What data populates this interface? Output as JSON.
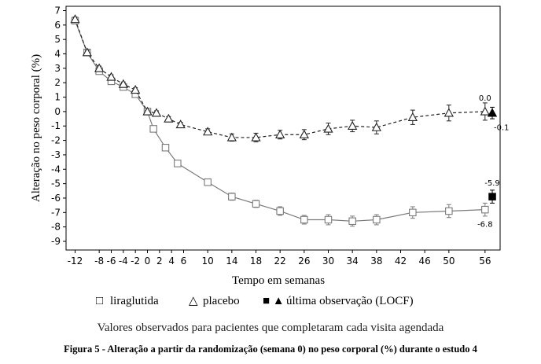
{
  "chart_data": {
    "type": "line",
    "xlabel": "Tempo em semanas",
    "ylabel": "Alteração no peso corporal (%)",
    "xlim": [
      -13.5,
      58.5
    ],
    "ylim": [
      -9.6,
      7.3
    ],
    "x_ticks": [
      -12,
      -8,
      -6,
      -4,
      -2,
      0,
      2,
      4,
      6,
      10,
      14,
      18,
      22,
      26,
      30,
      34,
      38,
      42,
      46,
      50,
      56
    ],
    "y_ticks": [
      7,
      6,
      5,
      4,
      3,
      2,
      1,
      0,
      -1,
      -2,
      -3,
      -4,
      -5,
      -6,
      -7,
      -8,
      -9
    ],
    "series": [
      {
        "name": "liraglutida",
        "marker": "square",
        "line_style": "solid",
        "color": "#7a7a7a",
        "x": [
          -12,
          -10,
          -8,
          -6,
          -4,
          -2,
          0,
          1,
          3,
          5,
          10,
          14,
          18,
          22,
          26,
          30,
          34,
          38,
          44,
          50,
          56
        ],
        "values": [
          6.3,
          4.1,
          2.8,
          2.1,
          1.7,
          1.2,
          0.0,
          -1.2,
          -2.5,
          -3.6,
          -4.9,
          -5.9,
          -6.4,
          -6.9,
          -7.5,
          -7.5,
          -7.6,
          -7.5,
          -7.0,
          -6.9,
          -6.8
        ],
        "err": [
          0.15,
          0.15,
          0.15,
          0.15,
          0.15,
          0.15,
          0.1,
          0.15,
          0.2,
          0.2,
          0.2,
          0.25,
          0.25,
          0.3,
          0.3,
          0.35,
          0.35,
          0.35,
          0.4,
          0.45,
          0.45
        ]
      },
      {
        "name": "placebo",
        "marker": "triangle",
        "line_style": "dashed",
        "color": "#222222",
        "x": [
          -12,
          -10,
          -8,
          -6,
          -4,
          -2,
          0,
          1.5,
          3.5,
          5.5,
          10,
          14,
          18,
          22,
          26,
          30,
          34,
          38,
          44,
          50,
          56
        ],
        "values": [
          6.4,
          4.1,
          3.0,
          2.4,
          1.9,
          1.5,
          0.0,
          -0.1,
          -0.5,
          -0.9,
          -1.4,
          -1.8,
          -1.8,
          -1.6,
          -1.6,
          -1.2,
          -1.0,
          -1.1,
          -0.4,
          -0.1,
          0.0
        ],
        "err": [
          0.15,
          0.15,
          0.15,
          0.15,
          0.15,
          0.15,
          0.1,
          0.15,
          0.15,
          0.15,
          0.2,
          0.25,
          0.3,
          0.3,
          0.35,
          0.4,
          0.4,
          0.45,
          0.5,
          0.55,
          0.6
        ]
      }
    ],
    "locf": [
      {
        "name": "liraglutida LOCF",
        "marker": "filled-square",
        "x": 57.2,
        "value": -5.9,
        "err": 0.45
      },
      {
        "name": "placebo LOCF",
        "marker": "filled-triangle",
        "x": 57.2,
        "value": -0.1,
        "err": 0.4
      }
    ],
    "annotations": [
      {
        "text": "0.0",
        "x": 56,
        "y": 0.0,
        "position": "above"
      },
      {
        "text": "-0.1",
        "x": 57.2,
        "y": -0.1,
        "position": "below-right"
      },
      {
        "text": "-5.9",
        "x": 57.2,
        "y": -5.9,
        "position": "above"
      },
      {
        "text": "-6.8",
        "x": 56,
        "y": -6.8,
        "position": "below"
      }
    ],
    "legend": {
      "position": "bottom",
      "items": [
        {
          "symbol": "□",
          "label": "liraglutida"
        },
        {
          "symbol": "△",
          "label": "placebo"
        },
        {
          "symbol": "■ ▲",
          "label": "última observação (LOCF)"
        }
      ]
    },
    "grid": false
  },
  "caption": {
    "subtitle": "Valores observados para pacientes que completaram cada visita agendada",
    "title": "Figura 5 - Alteração a partir da randomização (semana 0) no peso corporal (%) durante o estudo 4"
  }
}
